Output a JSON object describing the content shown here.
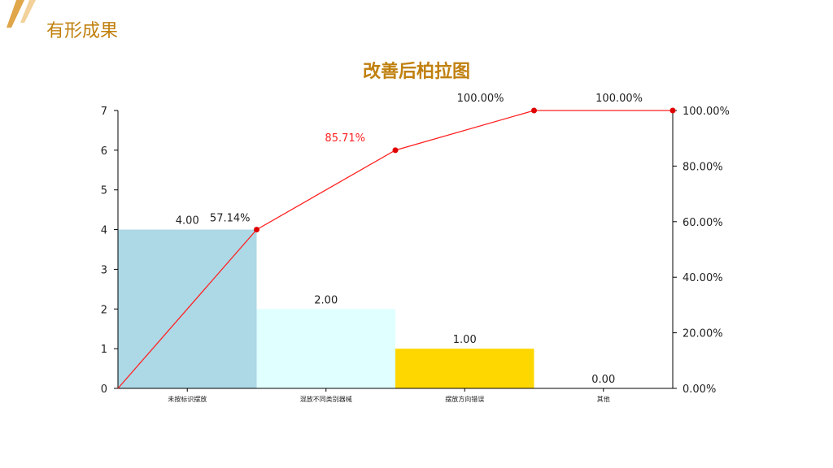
{
  "slide": {
    "section_title": "有形成果",
    "accent_color": "#c0800f"
  },
  "chart_data": {
    "type": "bar",
    "title": "改善后柏拉图",
    "categories": [
      "未按标识摆放",
      "混放不同类别器械",
      "摆放方向错误",
      "其他"
    ],
    "bar_colors": [
      "#add8e6",
      "#e0ffff",
      "#ffd700",
      "#ffffff"
    ],
    "series": [
      {
        "type": "bar",
        "values": [
          4,
          2,
          1,
          0
        ],
        "labels": [
          "4.00",
          "2.00",
          "1.00",
          "0.00"
        ]
      },
      {
        "type": "line",
        "axis": "right",
        "color": "#ff2020",
        "values": [
          57.14,
          85.71,
          100,
          100
        ],
        "labels": [
          "57.14%",
          "85.71%",
          "100.00%",
          "100.00%"
        ],
        "label_colors": [
          "#222222",
          "#ff2020",
          "#222222",
          "#222222"
        ]
      }
    ],
    "ylim": [
      0,
      7
    ],
    "y_ticks": [
      "0",
      "1",
      "2",
      "3",
      "4",
      "5",
      "6",
      "7"
    ],
    "y2lim": [
      0,
      100
    ],
    "y2_ticks": [
      "0.00%",
      "20.00%",
      "40.00%",
      "60.00%",
      "80.00%",
      "100.00%"
    ],
    "grid": false
  }
}
